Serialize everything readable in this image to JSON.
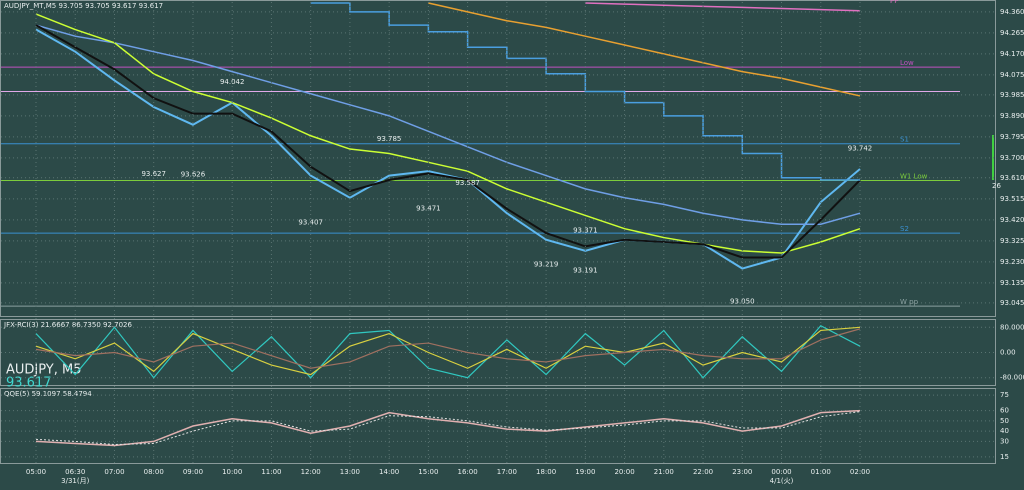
{
  "chart_data": [
    {
      "type": "line",
      "title": "AUDJPY_MT,M5 93.705 93.705 93.617 93.617",
      "symbol_label": "AUDJPY, M5",
      "price_label": "93.617",
      "side_label": "26",
      "categories": [
        "05:00",
        "06:30",
        "07:00",
        "08:00",
        "09:00",
        "10:00",
        "11:00",
        "12:00",
        "13:00",
        "14:00",
        "15:00",
        "16:00",
        "17:00",
        "18:00",
        "19:00",
        "20:00",
        "21:00",
        "22:00",
        "23:00",
        "00:00",
        "01:00",
        "02:00"
      ],
      "date_labels": [
        {
          "category": "06:30",
          "text": "3/31(月)"
        },
        {
          "category": "00:00",
          "text": "4/1(火)"
        }
      ],
      "ylim": [
        92.99,
        94.4
      ],
      "yticks": [
        {
          "value": 94.36,
          "label": "94.360"
        },
        {
          "value": 94.265,
          "label": "94.265"
        },
        {
          "value": 94.17,
          "label": "94.170"
        },
        {
          "value": 94.075,
          "label": "94.075"
        },
        {
          "value": 93.985,
          "label": "93.985"
        },
        {
          "value": 93.89,
          "label": "93.890"
        },
        {
          "value": 93.795,
          "label": "93.795"
        },
        {
          "value": 93.7,
          "label": "93.700"
        },
        {
          "value": 93.61,
          "label": "93.610"
        },
        {
          "value": 93.515,
          "label": "93.515"
        },
        {
          "value": 93.42,
          "label": "93.420"
        },
        {
          "value": 93.325,
          "label": "93.325"
        },
        {
          "value": 93.23,
          "label": "93.230"
        },
        {
          "value": 93.135,
          "label": "93.135"
        },
        {
          "value": 93.045,
          "label": "93.045"
        }
      ],
      "grid": true,
      "series": [
        {
          "color": "#5fb8f0",
          "width": 2,
          "values": [
            94.28,
            94.18,
            94.05,
            93.93,
            93.85,
            93.95,
            93.8,
            93.62,
            93.52,
            93.62,
            93.64,
            93.6,
            93.45,
            93.33,
            93.28,
            93.33,
            93.32,
            93.31,
            93.2,
            93.25,
            93.5,
            93.65
          ]
        },
        {
          "color": "#6f9fe6",
          "width": 1.5,
          "values": [
            94.3,
            94.25,
            94.22,
            94.18,
            94.14,
            94.09,
            94.04,
            93.99,
            93.94,
            93.89,
            93.82,
            93.75,
            93.68,
            93.62,
            93.56,
            93.52,
            93.49,
            93.45,
            93.42,
            93.4,
            93.4,
            93.45
          ]
        },
        {
          "color": "#ccff33",
          "width": 1.5,
          "values": [
            94.35,
            94.28,
            94.22,
            94.08,
            94.0,
            93.95,
            93.88,
            93.8,
            93.74,
            93.72,
            93.68,
            93.64,
            93.56,
            93.5,
            93.44,
            93.38,
            93.34,
            93.31,
            93.28,
            93.27,
            93.32,
            93.38
          ]
        },
        {
          "color": "#111111",
          "width": 2,
          "values": [
            94.3,
            94.2,
            94.1,
            93.97,
            93.9,
            93.9,
            93.82,
            93.66,
            93.55,
            93.6,
            93.63,
            93.6,
            93.47,
            93.36,
            93.3,
            93.33,
            93.32,
            93.31,
            93.25,
            93.25,
            93.42,
            93.6
          ]
        },
        {
          "color": "#e8a030",
          "width": 1.5,
          "values": [
            null,
            null,
            null,
            null,
            null,
            null,
            null,
            null,
            null,
            null,
            94.4,
            94.36,
            94.32,
            94.29,
            94.25,
            94.21,
            94.17,
            94.13,
            94.09,
            94.06,
            94.02,
            93.98
          ]
        },
        {
          "color": "#4a9fe0",
          "width": 1.5,
          "step": true,
          "values": [
            null,
            null,
            null,
            null,
            null,
            null,
            null,
            94.4,
            94.36,
            94.3,
            94.27,
            94.2,
            94.15,
            94.08,
            94.0,
            93.95,
            93.89,
            93.8,
            93.72,
            93.61,
            93.6,
            93.6
          ]
        },
        {
          "name": "PP",
          "color": "#e070c0",
          "width": 1.5,
          "values": [
            null,
            null,
            null,
            null,
            null,
            null,
            null,
            null,
            null,
            null,
            null,
            null,
            null,
            null,
            94.4,
            94.395,
            94.39,
            94.385,
            94.38,
            94.375,
            94.37,
            94.365
          ]
        }
      ],
      "levels": [
        {
          "name": "Low",
          "value": 94.11,
          "color": "#c050c0"
        },
        {
          "value": 94.0,
          "color": "#e0a8e8"
        },
        {
          "name": "S1",
          "value": 93.764,
          "color": "#3a90d0"
        },
        {
          "name": "W1 Low",
          "value": 93.598,
          "color": "#7ccc3c"
        },
        {
          "name": "S2",
          "value": 93.36,
          "color": "#3a90d0"
        },
        {
          "name": "W pp",
          "value": 93.03,
          "color": "#8aa0a0"
        }
      ],
      "annotations": [
        {
          "category": "08:00",
          "value": 93.627,
          "label": "93.627"
        },
        {
          "category": "09:00",
          "value": 93.626,
          "label": "93.626"
        },
        {
          "category": "10:00",
          "value": 94.042,
          "label": "94.042"
        },
        {
          "category": "14:00",
          "value": 93.785,
          "label": "93.785"
        },
        {
          "category": "16:00",
          "value": 93.587,
          "label": "93.587"
        },
        {
          "category": "12:00",
          "value": 93.407,
          "label": "93.407"
        },
        {
          "category": "15:00",
          "value": 93.471,
          "label": "93.471"
        },
        {
          "category": "18:00",
          "value": 93.219,
          "label": "93.219"
        },
        {
          "category": "19:00",
          "value": 93.371,
          "label": "93.371"
        },
        {
          "category": "19:00",
          "value": 93.191,
          "label": "93.191"
        },
        {
          "category": "23:00",
          "value": 93.05,
          "label": "93.050"
        },
        {
          "category": "02:00",
          "value": 93.742,
          "label": "93.742"
        }
      ]
    },
    {
      "type": "line",
      "title": "JFX-RCI(3) 21.6667 86.7350 92.7026",
      "ylim": [
        -100,
        100
      ],
      "yticks": [
        {
          "value": 80,
          "label": "80.0000"
        },
        {
          "value": 0,
          "label": "0.00"
        },
        {
          "value": -80,
          "label": "-80.0000"
        }
      ],
      "grid": true,
      "series": [
        {
          "color": "#30c8c0",
          "width": 1.2,
          "values": [
            60,
            -70,
            80,
            -80,
            70,
            -60,
            50,
            -80,
            60,
            70,
            -50,
            -80,
            40,
            -70,
            60,
            -40,
            70,
            -80,
            50,
            -60,
            85,
            20
          ]
        },
        {
          "color": "#d8d040",
          "width": 1.2,
          "values": [
            20,
            -20,
            30,
            -60,
            60,
            10,
            -40,
            -70,
            20,
            60,
            0,
            -50,
            10,
            -50,
            20,
            0,
            30,
            -40,
            0,
            -30,
            70,
            80
          ]
        },
        {
          "color": "#a07060",
          "width": 1.2,
          "values": [
            10,
            -10,
            0,
            -30,
            20,
            30,
            -10,
            -50,
            -30,
            20,
            30,
            0,
            -20,
            -30,
            -10,
            0,
            10,
            -10,
            -20,
            -20,
            40,
            75
          ]
        }
      ]
    },
    {
      "type": "line",
      "title": "QQE(5) 59.1097 58.4794",
      "ylim": [
        10,
        80
      ],
      "yticks": [
        75,
        60,
        50,
        40,
        30,
        15
      ],
      "grid": true,
      "series": [
        {
          "color": "#e0b0b0",
          "width": 1.5,
          "values": [
            30,
            28,
            26,
            30,
            45,
            52,
            48,
            38,
            45,
            58,
            52,
            48,
            42,
            40,
            44,
            48,
            52,
            48,
            40,
            45,
            58,
            60
          ]
        },
        {
          "color": "#e0e0e0",
          "width": 1,
          "dash": true,
          "values": [
            32,
            30,
            27,
            28,
            40,
            50,
            50,
            40,
            42,
            55,
            54,
            50,
            44,
            41,
            43,
            46,
            50,
            50,
            43,
            43,
            54,
            59
          ]
        }
      ]
    }
  ]
}
